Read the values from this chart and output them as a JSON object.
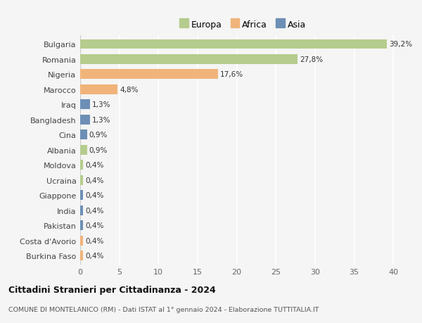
{
  "categories": [
    "Bulgaria",
    "Romania",
    "Nigeria",
    "Marocco",
    "Iraq",
    "Bangladesh",
    "Cina",
    "Albania",
    "Moldova",
    "Ucraina",
    "Giappone",
    "India",
    "Pakistan",
    "Costa d'Avorio",
    "Burkina Faso"
  ],
  "values": [
    39.2,
    27.8,
    17.6,
    4.8,
    1.3,
    1.3,
    0.9,
    0.9,
    0.4,
    0.4,
    0.4,
    0.4,
    0.4,
    0.4,
    0.4
  ],
  "labels": [
    "39,2%",
    "27,8%",
    "17,6%",
    "4,8%",
    "1,3%",
    "1,3%",
    "0,9%",
    "0,9%",
    "0,4%",
    "0,4%",
    "0,4%",
    "0,4%",
    "0,4%",
    "0,4%",
    "0,4%"
  ],
  "continent": [
    "Europa",
    "Europa",
    "Africa",
    "Africa",
    "Asia",
    "Asia",
    "Asia",
    "Europa",
    "Europa",
    "Europa",
    "Asia",
    "Asia",
    "Asia",
    "Africa",
    "Africa"
  ],
  "colors": {
    "Europa": "#b5cc8e",
    "Africa": "#f0b47a",
    "Asia": "#6d8fb5"
  },
  "xlim": [
    0,
    41.5
  ],
  "xticks": [
    0,
    5,
    10,
    15,
    20,
    25,
    30,
    35,
    40
  ],
  "title": "Cittadini Stranieri per Cittadinanza - 2024",
  "subtitle": "COMUNE DI MONTELANICO (RM) - Dati ISTAT al 1° gennaio 2024 - Elaborazione TUTTITALIA.IT",
  "bg_color": "#f5f5f5",
  "grid_color": "#ffffff",
  "bar_height": 0.65
}
